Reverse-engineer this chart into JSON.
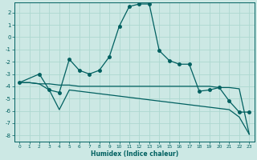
{
  "xlabel": "Humidex (Indice chaleur)",
  "background_color": "#cce8e4",
  "grid_color": "#aed8d0",
  "line_color": "#006060",
  "xlim": [
    -0.5,
    23.5
  ],
  "ylim": [
    -8.5,
    2.8
  ],
  "xticks": [
    0,
    1,
    2,
    3,
    4,
    5,
    6,
    7,
    8,
    9,
    10,
    11,
    12,
    13,
    14,
    15,
    16,
    17,
    18,
    19,
    20,
    21,
    22,
    23
  ],
  "yticks": [
    -8,
    -7,
    -6,
    -5,
    -4,
    -3,
    -2,
    -1,
    0,
    1,
    2
  ],
  "line1_x": [
    0,
    2,
    3,
    4,
    5,
    6,
    7,
    8,
    9,
    10,
    11,
    12,
    13,
    14,
    15,
    16,
    17,
    18,
    19,
    20,
    21,
    22,
    23
  ],
  "line1_y": [
    -3.7,
    -3.0,
    -4.3,
    -4.5,
    -1.8,
    -2.7,
    -3.0,
    -2.7,
    -1.6,
    0.9,
    2.5,
    2.7,
    2.7,
    -1.1,
    -1.9,
    -2.2,
    -2.2,
    -4.4,
    -4.3,
    -4.1,
    -5.2,
    -6.1,
    -6.1
  ],
  "line2_x": [
    0,
    1,
    2,
    3,
    4,
    5,
    6,
    7,
    8,
    9,
    10,
    11,
    12,
    13,
    14,
    15,
    16,
    17,
    18,
    19,
    20,
    21,
    22,
    23
  ],
  "line2_y": [
    -3.7,
    -3.7,
    -3.8,
    -3.8,
    -3.9,
    -3.9,
    -4.0,
    -4.0,
    -4.0,
    -4.0,
    -4.0,
    -4.0,
    -4.0,
    -4.0,
    -4.0,
    -4.0,
    -4.0,
    -4.0,
    -4.0,
    -4.0,
    -4.1,
    -4.1,
    -4.2,
    -7.9
  ],
  "line3_x": [
    0,
    1,
    2,
    3,
    4,
    5,
    6,
    7,
    8,
    9,
    10,
    11,
    12,
    13,
    14,
    15,
    16,
    17,
    18,
    19,
    20,
    21,
    22,
    23
  ],
  "line3_y": [
    -3.7,
    -3.7,
    -3.8,
    -4.3,
    -5.9,
    -4.3,
    -4.4,
    -4.5,
    -4.6,
    -4.7,
    -4.8,
    -4.9,
    -5.0,
    -5.1,
    -5.2,
    -5.3,
    -5.4,
    -5.5,
    -5.6,
    -5.7,
    -5.8,
    -5.9,
    -6.5,
    -7.9
  ],
  "marker_size": 2.5,
  "line_width": 0.9
}
